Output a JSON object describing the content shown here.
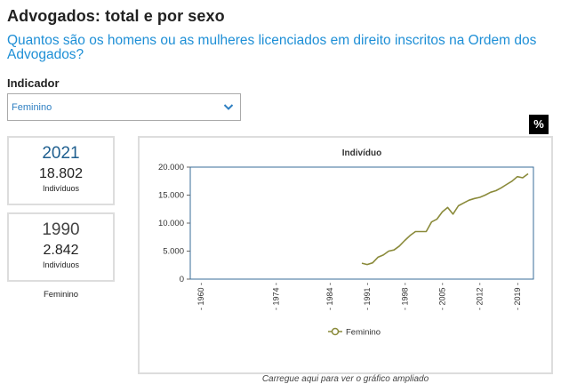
{
  "header": {
    "title": "Advogados: total e por sexo",
    "subtitle": "Quantos são os homens ou as mulheres licenciados em direito inscritos na Ordem dos Advogados?"
  },
  "filter": {
    "label": "Indicador",
    "selected": "Feminino"
  },
  "percent_button": {
    "label": "%"
  },
  "stats": [
    {
      "year": "2021",
      "value": "18.802",
      "unit": "Indivíduos"
    },
    {
      "year": "1990",
      "value": "2.842",
      "unit": "Indivíduos"
    }
  ],
  "stats_caption": "Feminino",
  "chart_link": "Carregue aqui para ver o gráfico ampliado",
  "colors": {
    "series": "#8a8a3a",
    "accent": "#1e8fd6",
    "plot_border": "#3a6d99"
  },
  "chart_data": {
    "type": "line",
    "title": "Indivíduo",
    "xlabel": "",
    "ylabel": "",
    "xlim": [
      1958,
      2022
    ],
    "ylim": [
      0,
      20000
    ],
    "x_ticks": [
      1960,
      1974,
      1984,
      1991,
      1998,
      2005,
      2012,
      2019
    ],
    "x_tick_labels": [
      "- 1960 -",
      "- 1974 -",
      "- 1984 -",
      "- 1991 -",
      "- 1998 -",
      "- 2005 -",
      "- 2012 -",
      "- 2019 -"
    ],
    "y_ticks": [
      0,
      5000,
      10000,
      15000,
      20000
    ],
    "y_tick_labels": [
      "0",
      "5.000",
      "10.000",
      "15.000",
      "20.000"
    ],
    "grid": false,
    "legend_position": "bottom",
    "series": [
      {
        "name": "Feminino",
        "x": [
          1990,
          1991,
          1992,
          1993,
          1994,
          1995,
          1996,
          1997,
          1998,
          1999,
          2000,
          2001,
          2002,
          2003,
          2004,
          2005,
          2006,
          2007,
          2008,
          2009,
          2010,
          2011,
          2012,
          2013,
          2014,
          2015,
          2016,
          2017,
          2018,
          2019,
          2020,
          2021
        ],
        "values": [
          2842,
          2600,
          2900,
          3900,
          4300,
          5000,
          5200,
          5900,
          6900,
          7800,
          8500,
          8500,
          8500,
          10200,
          10700,
          12000,
          12800,
          11600,
          13100,
          13600,
          14100,
          14400,
          14600,
          15000,
          15500,
          15800,
          16300,
          16900,
          17500,
          18300,
          18100,
          18802
        ]
      }
    ]
  }
}
